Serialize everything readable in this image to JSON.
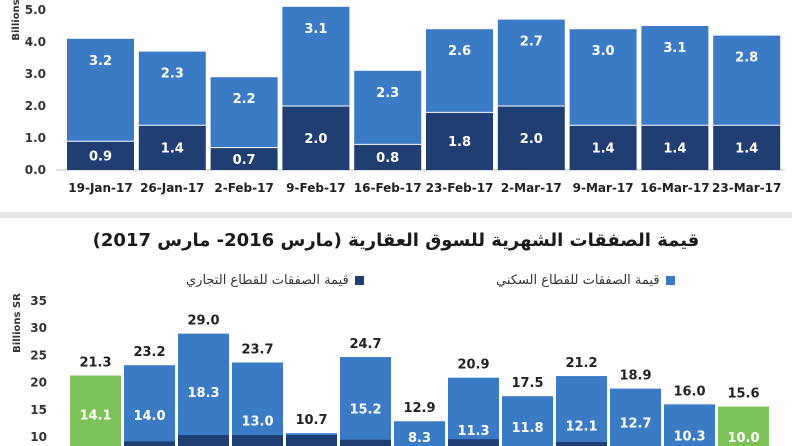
{
  "chart_data": [
    {
      "type": "bar",
      "stacked": true,
      "title": "",
      "ylabel": "Billions",
      "ylim": [
        0,
        5
      ],
      "yticks": [
        "0.0",
        "1.0",
        "2.0",
        "3.0",
        "4.0",
        "5.0"
      ],
      "categories": [
        "19-Jan-17",
        "26-Jan-17",
        "2-Feb-17",
        "9-Feb-17",
        "16-Feb-17",
        "23-Feb-17",
        "2-Mar-17",
        "9-Mar-17",
        "16-Mar-17",
        "23-Mar-17"
      ],
      "series": [
        {
          "values": [
            0.9,
            1.4,
            0.7,
            2.0,
            0.8,
            1.8,
            2.0,
            1.4,
            1.4,
            1.4
          ]
        },
        {
          "values": [
            3.2,
            2.3,
            2.2,
            3.1,
            2.3,
            2.6,
            2.7,
            3.0,
            3.1,
            2.8
          ]
        }
      ],
      "data_labels": [
        [
          "0.9",
          "1.4",
          "0.7",
          "2.0",
          "0.8",
          "1.8",
          "2.0",
          "1.4",
          "1.4",
          "1.4"
        ],
        [
          "3.2",
          "2.3",
          "2.2",
          "3.1",
          "2.3",
          "2.6",
          "2.7",
          "3.0",
          "3.1",
          "2.8"
        ]
      ],
      "colors": {
        "lower": "#1f3f73",
        "upper": "#3b7bc6"
      },
      "grid": false
    },
    {
      "type": "bar",
      "stacked": true,
      "title": "قيمة الصفقات الشهرية للسوق العقارية (مارس 2016- مارس 2017)",
      "ylabel": "Billions SR",
      "ylim": [
        0,
        35
      ],
      "yticks": [
        "10",
        "15",
        "20",
        "25",
        "30",
        "35"
      ],
      "legend": [
        {
          "label": "قيمة الصفقات للقطاع السكني",
          "color": "#3b7bc6"
        },
        {
          "label": "قيمة الصفقات للقطاع التجاري",
          "color": "#1f3f73"
        }
      ],
      "totals": [
        "21.3",
        "23.2",
        "29.0",
        "23.7",
        "10.7",
        "24.7",
        "12.9",
        "20.9",
        "17.5",
        "21.2",
        "18.9",
        "16.0",
        "15.6"
      ],
      "total_values": [
        21.3,
        23.2,
        29.0,
        23.7,
        10.7,
        24.7,
        12.9,
        20.9,
        17.5,
        21.2,
        18.9,
        16.0,
        15.6
      ],
      "residential_labels": [
        "14.1",
        "14.0",
        "18.3",
        "13.0",
        "",
        "15.2",
        "8.3",
        "11.3",
        "11.8",
        "12.1",
        "12.7",
        "10.3",
        "10.0"
      ],
      "residential_values": [
        14.1,
        14.0,
        18.3,
        13.0,
        null,
        15.2,
        8.3,
        11.3,
        11.8,
        12.1,
        12.7,
        10.3,
        10.0
      ],
      "highlight_bars": [
        0,
        12
      ],
      "colors": {
        "residential": "#3b7bc6",
        "commercial": "#1f3f73",
        "highlight": "#7dc35a"
      }
    }
  ]
}
